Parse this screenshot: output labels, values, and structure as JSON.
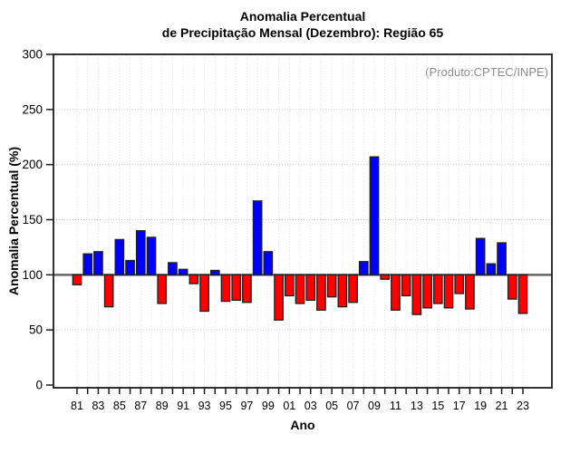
{
  "page": {
    "title_line1": "Anomalia Percentual",
    "title_line2": "de Precipitação Mensal (Dezembro): Região 65",
    "annotation": "(Produto:CPTEC/INPE)"
  },
  "chart_data": {
    "type": "bar",
    "title": "Anomalia Percentual de Precipitação Mensal (Dezembro): Região 65",
    "subtitle": "(Produto:CPTEC/INPE)",
    "xlabel": "Ano",
    "ylabel": "Anomalia Percentual (%)",
    "ylim": [
      0,
      300
    ],
    "yticks": [
      0,
      50,
      100,
      150,
      200,
      250,
      300
    ],
    "baseline": 100,
    "grid": "dotted gridlines: horizontal at each 50, vertical at each year",
    "legend": "none",
    "bar_colors": {
      "above_baseline": "#0000FF",
      "below_baseline": "#FF0000",
      "bar_border": "#1f1f1f",
      "baseline_line": "#666666",
      "gridline_h": "#cfcfcf",
      "gridline_v": "#e2e2e2",
      "box_border": "#1c1c1c",
      "annotation_text": "#8c8c8c"
    },
    "years": [
      1981,
      1982,
      1983,
      1984,
      1985,
      1986,
      1987,
      1988,
      1989,
      1990,
      1991,
      1992,
      1993,
      1994,
      1995,
      1996,
      1997,
      1998,
      1999,
      2000,
      2001,
      2002,
      2003,
      2004,
      2005,
      2006,
      2007,
      2008,
      2009,
      2010,
      2011,
      2012,
      2013,
      2014,
      2015,
      2016,
      2017,
      2018,
      2019,
      2020,
      2021,
      2022,
      2023
    ],
    "xtick_labels": [
      "81",
      "",
      "83",
      "",
      "85",
      "",
      "87",
      "",
      "89",
      "",
      "91",
      "",
      "93",
      "",
      "95",
      "",
      "97",
      "",
      "99",
      "",
      "01",
      "",
      "03",
      "",
      "05",
      "",
      "07",
      "",
      "09",
      "",
      "11",
      "",
      "13",
      "",
      "15",
      "",
      "17",
      "",
      "19",
      "",
      "21",
      "",
      "23"
    ],
    "values": [
      91,
      119,
      121,
      71,
      132,
      113,
      140,
      134,
      74,
      111,
      105,
      92,
      67,
      104,
      76,
      77,
      75,
      167,
      121,
      59,
      81,
      74,
      77,
      68,
      80,
      71,
      75,
      112,
      207,
      96,
      68,
      81,
      64,
      70,
      74,
      70,
      83,
      69,
      133,
      110,
      129,
      78,
      65
    ]
  }
}
